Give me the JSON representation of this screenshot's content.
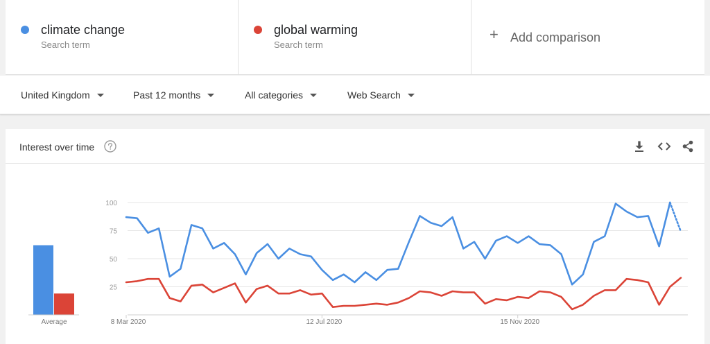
{
  "terms": [
    {
      "name": "climate change",
      "subtitle": "Search term",
      "color": "#4a8fe2"
    },
    {
      "name": "global warming",
      "subtitle": "Search term",
      "color": "#db4437"
    }
  ],
  "add_comparison": {
    "label": "Add comparison",
    "icon": "plus-icon"
  },
  "filters": {
    "region": "United Kingdom",
    "time_range": "Past 12 months",
    "category": "All categories",
    "search_type": "Web Search"
  },
  "card": {
    "title": "Interest over time",
    "icons": [
      "help-icon",
      "download-icon",
      "embed-icon",
      "share-icon"
    ]
  },
  "chart_data": {
    "type": "line",
    "ylim": [
      0,
      100
    ],
    "yticks": [
      "100",
      "75",
      "50",
      "25"
    ],
    "x_tick_labels": [
      "8 Mar 2020",
      "12 Jul 2020",
      "15 Nov 2020"
    ],
    "x_tick_indices": [
      0,
      18,
      36
    ],
    "grid": true,
    "series": [
      {
        "name": "climate change",
        "color": "#4a8fe2",
        "values": [
          87,
          86,
          73,
          77,
          34,
          41,
          80,
          77,
          59,
          64,
          54,
          36,
          55,
          63,
          50,
          59,
          54,
          52,
          40,
          31,
          36,
          29,
          38,
          31,
          40,
          41,
          65,
          88,
          82,
          79,
          87,
          59,
          65,
          50,
          66,
          70,
          64,
          70,
          63,
          62,
          54,
          27,
          36,
          65,
          70,
          99,
          92,
          87,
          88,
          61,
          100,
          74
        ],
        "partial_last": true
      },
      {
        "name": "global warming",
        "color": "#db4437",
        "values": [
          29,
          30,
          32,
          32,
          15,
          12,
          26,
          27,
          20,
          24,
          28,
          11,
          23,
          26,
          19,
          19,
          22,
          18,
          19,
          7,
          8,
          8,
          9,
          10,
          9,
          11,
          15,
          21,
          20,
          17,
          21,
          20,
          20,
          10,
          14,
          13,
          16,
          15,
          21,
          20,
          16,
          5,
          9,
          17,
          22,
          22,
          32,
          31,
          29,
          9,
          25,
          33
        ]
      }
    ],
    "averages": {
      "label": "Average",
      "values": [
        {
          "name": "climate change",
          "value": 62,
          "color": "#4a8fe2"
        },
        {
          "name": "global warming",
          "value": 19,
          "color": "#db4437"
        }
      ]
    }
  }
}
